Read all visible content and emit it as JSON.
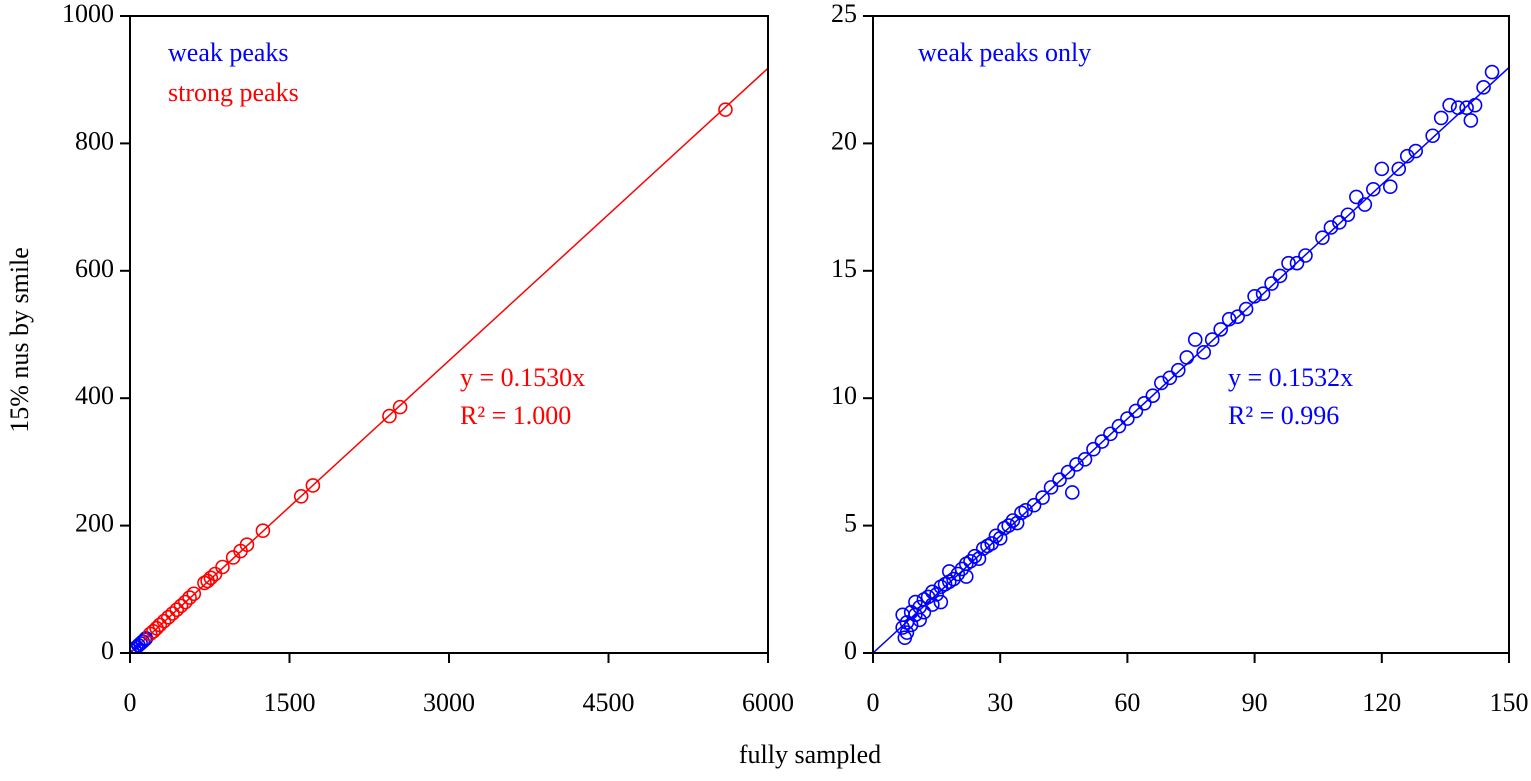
{
  "xlabel": "fully sampled",
  "ylabel": "15% nus by smile",
  "chart_data": [
    {
      "type": "scatter",
      "xlim": [
        0,
        6000
      ],
      "xticks": [
        0,
        1500,
        3000,
        4500,
        6000
      ],
      "ylim": [
        0,
        1000
      ],
      "yticks": [
        0,
        200,
        400,
        600,
        800,
        1000
      ],
      "series": [
        {
          "name": "weak peaks",
          "color": "#0000ff",
          "x": [
            0,
            20,
            40,
            60,
            80,
            100,
            120,
            140,
            150
          ],
          "values": [
            0,
            3,
            6,
            9,
            12,
            15,
            18,
            21,
            23
          ]
        },
        {
          "name": "strong peaks",
          "color": "#ff0000",
          "x": [
            5600,
            2540,
            2440,
            1720,
            1610,
            1250,
            1100,
            1040,
            970,
            870,
            800,
            760,
            730,
            700,
            600,
            560,
            520,
            480,
            440,
            400,
            360,
            320,
            280,
            250,
            220,
            190
          ],
          "values": [
            853,
            386,
            372,
            263,
            246,
            192,
            170,
            160,
            150,
            135,
            124,
            118,
            113,
            110,
            93,
            87,
            80,
            74,
            68,
            62,
            56,
            50,
            44,
            39,
            34,
            30
          ]
        }
      ],
      "fit": {
        "slope": 0.153,
        "color": "#ff0000"
      },
      "annotations": [
        "y = 0.1530x",
        "R² = 1.000"
      ],
      "annotation_color": "#ff0000"
    },
    {
      "type": "scatter",
      "xlim": [
        0,
        150
      ],
      "xticks": [
        0,
        30,
        60,
        90,
        120,
        150
      ],
      "ylim": [
        0,
        25
      ],
      "yticks": [
        0,
        5,
        10,
        15,
        20,
        25
      ],
      "series": [
        {
          "name": "weak peaks only",
          "color": "#0000ff",
          "x": [
            7,
            7,
            7.5,
            8,
            8,
            9,
            9,
            10,
            10,
            11,
            11,
            12,
            12,
            13,
            14,
            14,
            15,
            16,
            16,
            17,
            18,
            18,
            19,
            20,
            21,
            22,
            22,
            23,
            24,
            25,
            26,
            27,
            28,
            29,
            30,
            31,
            32,
            33,
            34,
            35,
            36,
            38,
            40,
            42,
            44,
            46,
            47,
            48,
            50,
            52,
            54,
            56,
            58,
            60,
            62,
            64,
            66,
            68,
            70,
            72,
            74,
            76,
            78,
            80,
            82,
            84,
            86,
            88,
            90,
            92,
            94,
            96,
            98,
            100,
            102,
            106,
            108,
            110,
            112,
            114,
            116,
            118,
            120,
            122,
            124,
            126,
            128,
            132,
            134,
            136,
            138,
            140,
            141,
            142,
            144,
            146
          ],
          "values": [
            1.0,
            1.5,
            0.6,
            1.2,
            0.8,
            1.6,
            1.1,
            1.5,
            2.0,
            1.3,
            1.8,
            2.1,
            1.6,
            2.2,
            1.9,
            2.4,
            2.3,
            2.6,
            2.0,
            2.7,
            2.8,
            3.2,
            2.9,
            3.1,
            3.3,
            3.5,
            3.0,
            3.6,
            3.8,
            3.7,
            4.1,
            4.2,
            4.3,
            4.6,
            4.5,
            4.9,
            5.0,
            5.2,
            5.1,
            5.5,
            5.6,
            5.8,
            6.1,
            6.5,
            6.8,
            7.1,
            6.3,
            7.4,
            7.6,
            8.0,
            8.3,
            8.6,
            8.9,
            9.2,
            9.5,
            9.8,
            10.1,
            10.6,
            10.8,
            11.1,
            11.6,
            12.3,
            11.8,
            12.3,
            12.7,
            13.1,
            13.2,
            13.5,
            14.0,
            14.1,
            14.5,
            14.8,
            15.3,
            15.3,
            15.6,
            16.3,
            16.7,
            16.9,
            17.2,
            17.9,
            17.6,
            18.2,
            19.0,
            18.3,
            19.0,
            19.5,
            19.7,
            20.3,
            21.0,
            21.5,
            21.4,
            21.4,
            20.9,
            21.5,
            22.2,
            22.8
          ]
        }
      ],
      "fit": {
        "slope": 0.1532,
        "color": "#0000ff"
      },
      "annotations": [
        "y = 0.1532x",
        "R² = 0.996"
      ],
      "annotation_color": "#0000ff"
    }
  ]
}
